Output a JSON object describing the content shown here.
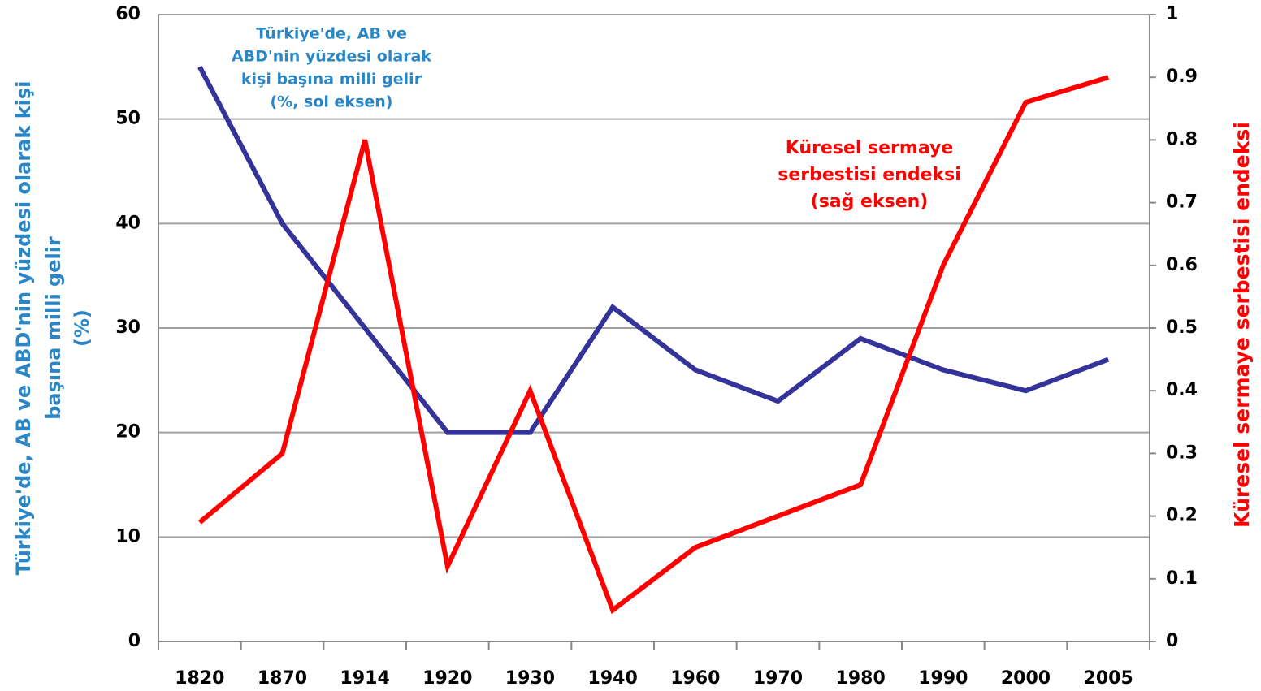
{
  "chart_data": {
    "type": "line",
    "categories": [
      "1820",
      "1870",
      "1914",
      "1920",
      "1930",
      "1940",
      "1960",
      "1970",
      "1980",
      "1990",
      "2000",
      "2005"
    ],
    "series": [
      {
        "name": [
          "Türkiye'de, AB ve",
          "ABD'nin yüzdesi olarak",
          "kişi başına milli gelir",
          "(%, sol eksen)"
        ],
        "color": "#333399",
        "label_color": "#2b86c5",
        "axis": "y",
        "values": [
          55,
          40,
          30,
          20,
          20,
          32,
          26,
          23,
          29,
          26,
          24,
          27
        ]
      },
      {
        "name": [
          "Küresel sermaye",
          "serbestisi endeksi",
          "(sağ eksen)"
        ],
        "color": "#ff0000",
        "label_color": "#ff0000",
        "axis": "y2",
        "values": [
          0.19,
          0.3,
          0.8,
          0.12,
          0.4,
          0.05,
          0.15,
          0.2,
          0.25,
          0.6,
          0.86,
          0.9
        ]
      }
    ],
    "ylabel": [
      "Türkiye'de, AB ve ABD'nin yüzdesi olarak  kişi",
      "başına milli gelir",
      "(%)"
    ],
    "y2label": "Küresel sermaye  serbestisi endeksi",
    "ylim": [
      0,
      60
    ],
    "yticks": [
      0,
      10,
      20,
      30,
      40,
      50,
      60
    ],
    "y2lim": [
      0,
      1
    ],
    "y2ticks": [
      0,
      0.1,
      0.2,
      0.3,
      0.4,
      0.5,
      0.6,
      0.7,
      0.8,
      0.9,
      1
    ],
    "grid": true
  }
}
